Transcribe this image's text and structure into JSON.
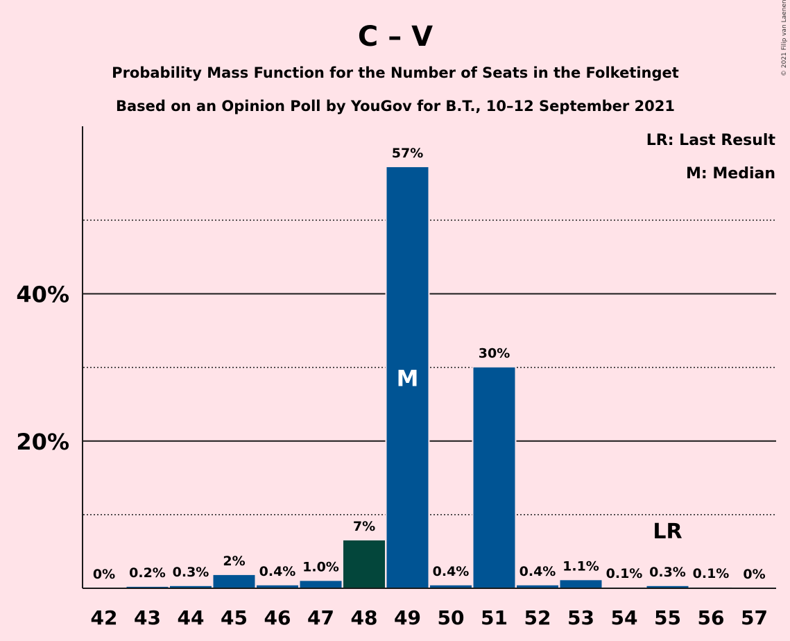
{
  "title": "C – V",
  "subtitle1": "Probability Mass Function for the Number of Seats in the Folketinget",
  "subtitle2": "Based on an Opinion Poll by YouGov for B.T., 10–12 September 2021",
  "copyright": "© 2021 Filip van Laenen",
  "legend": {
    "lr": "LR: Last Result",
    "m": "M: Median"
  },
  "colors": {
    "background": "#ffe3e8",
    "bar": "#005494",
    "bar_alt": "#03463b"
  },
  "chart_data": {
    "type": "bar",
    "categories": [
      "42",
      "43",
      "44",
      "45",
      "46",
      "47",
      "48",
      "49",
      "50",
      "51",
      "52",
      "53",
      "54",
      "55",
      "56",
      "57"
    ],
    "values": [
      0,
      0.2,
      0.3,
      1.8,
      0.4,
      1.0,
      6.5,
      57.2,
      0.4,
      30.0,
      0.4,
      1.1,
      0.1,
      0.3,
      0.1,
      0
    ],
    "labels": [
      "0%",
      "0.2%",
      "0.3%",
      "2%",
      "0.4%",
      "1.0%",
      "7%",
      "57%",
      "0.4%",
      "30%",
      "0.4%",
      "1.1%",
      "0.1%",
      "0.3%",
      "0.1%",
      "0%"
    ],
    "bar_colors": [
      "#005494",
      "#005494",
      "#005494",
      "#005494",
      "#005494",
      "#005494",
      "#03463b",
      "#005494",
      "#005494",
      "#005494",
      "#005494",
      "#005494",
      "#005494",
      "#005494",
      "#005494",
      "#005494"
    ],
    "yticks": [
      20,
      40
    ],
    "ytick_labels": [
      "20%",
      "40%"
    ],
    "minor_gridlines": [
      10,
      30,
      50
    ],
    "ylim": [
      0,
      62.5
    ],
    "median": {
      "category": "49",
      "label": "M"
    },
    "last_result": {
      "category": "55",
      "label": "LR"
    },
    "xlabel": "",
    "ylabel": "",
    "grid": true,
    "legend_position": "top-right"
  }
}
